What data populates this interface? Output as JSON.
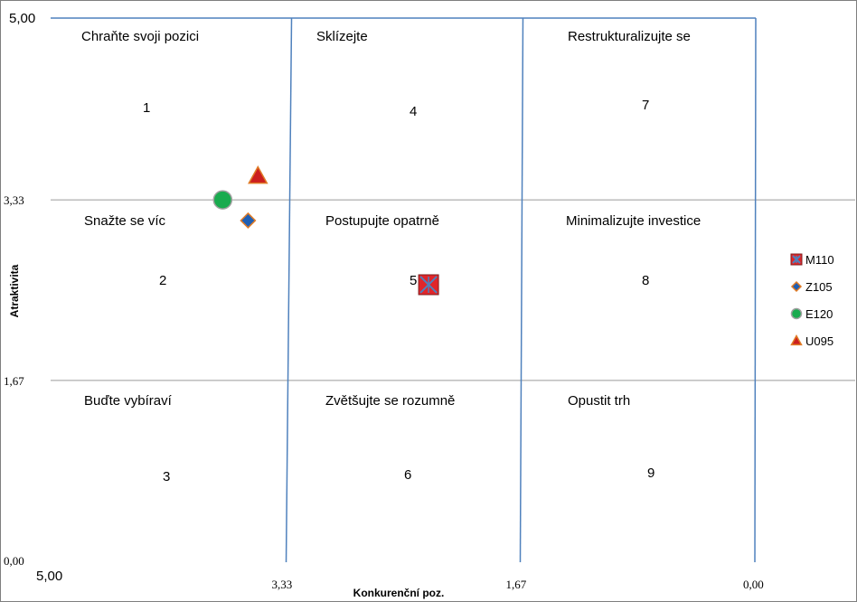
{
  "chart_data": {
    "type": "scatter",
    "xlabel": "Konkurenční poz.",
    "ylabel": "Atraktivita",
    "x_reversed": true,
    "xlim": [
      5.0,
      0.0
    ],
    "ylim": [
      0.0,
      5.0
    ],
    "x_ticks": [
      "5,00",
      "3,33",
      "1,67",
      "0,00"
    ],
    "y_ticks": [
      "0,00",
      "1,67",
      "3,33",
      "5,00"
    ],
    "grid": true,
    "legend_position": "right",
    "cells": [
      {
        "number": "1",
        "label": "Chraňte svoji pozici"
      },
      {
        "number": "2",
        "label": "Snažte se víc"
      },
      {
        "number": "3",
        "label": "Buďte vybíraví"
      },
      {
        "number": "4",
        "label": "Sklízejte"
      },
      {
        "number": "5",
        "label": "Postupujte opatrně"
      },
      {
        "number": "6",
        "label": "Zvětšujte se rozumně"
      },
      {
        "number": "7",
        "label": "Restrukturalizujte se"
      },
      {
        "number": "8",
        "label": "Minimalizujte investice"
      },
      {
        "number": "9",
        "label": "Opustit trh"
      }
    ],
    "series": [
      {
        "name": "M110",
        "marker": "square-x",
        "color": "#e0262a",
        "x": 2.32,
        "y": 2.55
      },
      {
        "name": "Z105",
        "marker": "diamond",
        "color": "#1f5fb4",
        "x": 3.6,
        "y": 3.14
      },
      {
        "name": "E120",
        "marker": "circle",
        "color": "#1aab4f",
        "x": 3.78,
        "y": 3.33
      },
      {
        "name": "U095",
        "marker": "triangle",
        "color": "#cc1f1f",
        "x": 3.53,
        "y": 3.55
      }
    ]
  }
}
